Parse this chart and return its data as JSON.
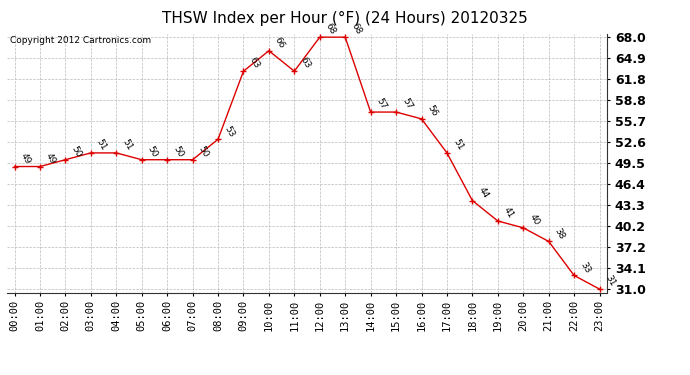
{
  "title": "THSW Index per Hour (°F) (24 Hours) 20120325",
  "copyright": "Copyright 2012 Cartronics.com",
  "hours": [
    "00:00",
    "01:00",
    "02:00",
    "03:00",
    "04:00",
    "05:00",
    "06:00",
    "07:00",
    "08:00",
    "09:00",
    "10:00",
    "11:00",
    "12:00",
    "13:00",
    "14:00",
    "15:00",
    "16:00",
    "17:00",
    "18:00",
    "19:00",
    "20:00",
    "21:00",
    "22:00",
    "23:00"
  ],
  "values": [
    49,
    49,
    50,
    51,
    51,
    50,
    50,
    50,
    53,
    63,
    66,
    63,
    68,
    68,
    57,
    57,
    56,
    51,
    44,
    41,
    40,
    38,
    33,
    31
  ],
  "line_color": "#dd0000",
  "marker": "+",
  "marker_color": "#dd0000",
  "bg_color": "#ffffff",
  "plot_bg_color": "#ffffff",
  "grid_color": "#bbbbbb",
  "label_color": "#000000",
  "ylim_min": 31.0,
  "ylim_max": 68.0,
  "yticks": [
    31.0,
    34.1,
    37.2,
    40.2,
    43.3,
    46.4,
    49.5,
    52.6,
    55.7,
    58.8,
    61.8,
    64.9,
    68.0
  ],
  "title_fontsize": 11,
  "tick_fontsize": 7.5,
  "ytick_fontsize": 9,
  "annotation_fontsize": 6.5,
  "copyright_fontsize": 6.5
}
